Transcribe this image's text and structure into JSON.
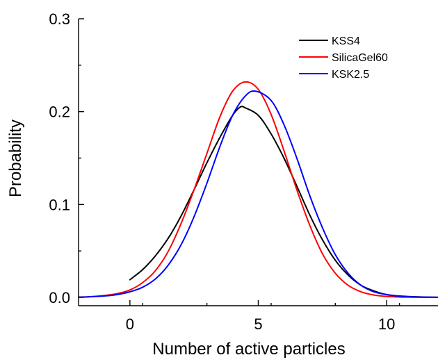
{
  "chart_data": {
    "type": "line",
    "title": "",
    "xlabel": "Number of active particles",
    "ylabel": "Probability",
    "xlim": [
      -2,
      12
    ],
    "ylim": [
      0,
      0.3
    ],
    "x_ticks": [
      0,
      5,
      10
    ],
    "x_tick_labels": [
      "0",
      "5",
      "10"
    ],
    "y_ticks": [
      0.0,
      0.1,
      0.2,
      0.3
    ],
    "y_tick_labels": [
      "0.0",
      "0.1",
      "0.2",
      "0.3"
    ],
    "grid": false,
    "legend_position": "top-right",
    "series": [
      {
        "name": "KSS4",
        "color": "#000000",
        "x": [
          0,
          0.5,
          1,
          1.5,
          2,
          2.5,
          3,
          3.5,
          4,
          4.3,
          4.5,
          5,
          5.5,
          6,
          6.5,
          7,
          7.5,
          8,
          8.5,
          9,
          9.5,
          10,
          10.5,
          11,
          11.5,
          12
        ],
        "y": [
          0.019,
          0.03,
          0.045,
          0.064,
          0.088,
          0.116,
          0.145,
          0.172,
          0.196,
          0.205,
          0.204,
          0.196,
          0.176,
          0.15,
          0.12,
          0.089,
          0.062,
          0.04,
          0.024,
          0.013,
          0.007,
          0.003,
          0.0015,
          0.0007,
          0.0003,
          0.0001
        ]
      },
      {
        "name": "SilicaGel60",
        "color": "#ff0000",
        "x": [
          -2,
          -1.5,
          -1,
          -0.5,
          0,
          0.5,
          1,
          1.5,
          2,
          2.5,
          3,
          3.5,
          4,
          4.5,
          5,
          5.5,
          6,
          6.5,
          7,
          7.5,
          8,
          8.5,
          9,
          9.5,
          10,
          10.5,
          11,
          12
        ],
        "y": [
          0.0003,
          0.0008,
          0.002,
          0.004,
          0.008,
          0.016,
          0.029,
          0.05,
          0.08,
          0.116,
          0.155,
          0.194,
          0.222,
          0.232,
          0.224,
          0.197,
          0.158,
          0.116,
          0.078,
          0.047,
          0.026,
          0.013,
          0.006,
          0.0025,
          0.001,
          0.0004,
          0.0002,
          0.0
        ]
      },
      {
        "name": "KSK2.5",
        "color": "#0000ff",
        "x": [
          -2,
          -1.5,
          -1,
          -0.5,
          0,
          0.5,
          1,
          1.5,
          2,
          2.5,
          3,
          3.5,
          4,
          4.5,
          4.9,
          5.5,
          6,
          6.5,
          7,
          7.5,
          8,
          8.5,
          9,
          9.5,
          10,
          10.5,
          11,
          12
        ],
        "y": [
          0.0003,
          0.0007,
          0.0015,
          0.003,
          0.006,
          0.011,
          0.02,
          0.035,
          0.057,
          0.087,
          0.123,
          0.162,
          0.196,
          0.217,
          0.222,
          0.212,
          0.186,
          0.15,
          0.11,
          0.075,
          0.046,
          0.026,
          0.013,
          0.006,
          0.003,
          0.0012,
          0.0005,
          0.0001
        ]
      }
    ]
  }
}
